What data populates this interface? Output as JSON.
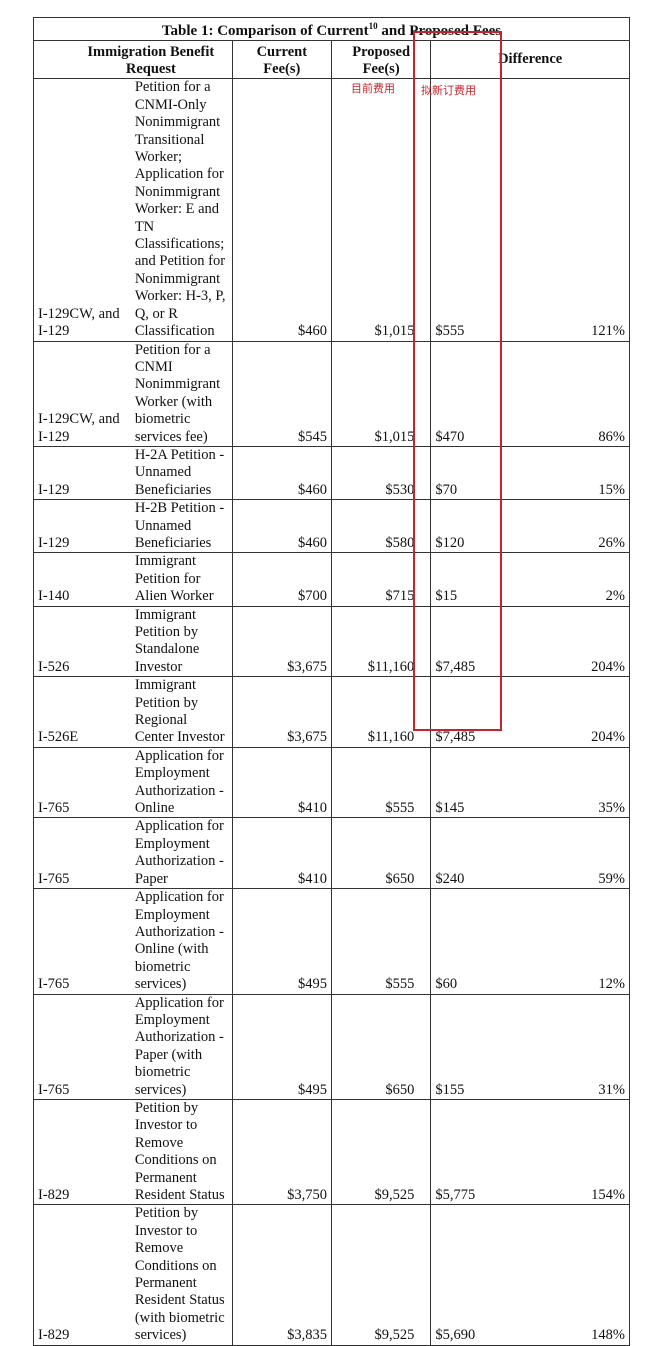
{
  "table": {
    "title": "Table 1: Comparison of Current",
    "title_sup": "10",
    "title_end": " and Proposed Fees",
    "headers": {
      "request": "Immigration Benefit Request",
      "current": "Current Fee(s)",
      "proposed": "Proposed Fee(s)",
      "difference": "Difference"
    },
    "annotations": {
      "current_cn": "目前费用",
      "proposed_cn": "拟新订费用",
      "highlight_color": "#c0262d"
    },
    "rows": [
      {
        "form": "I-129CW, and I-129",
        "desc": "Petition for a CNMI-Only Nonimmigrant Transitional Worker; Application for Nonimmigrant Worker: E and TN Classifications; and Petition for Nonimmigrant Worker: H-3, P, Q, or R Classification",
        "current": "$460",
        "proposed": "$1,015",
        "diff": "$555",
        "pct": "121%"
      },
      {
        "form": "I-129CW, and I-129",
        "desc": "Petition for a CNMI Nonimmigrant Worker (with biometric services fee)",
        "current": "$545",
        "proposed": "$1,015",
        "diff": "$470",
        "pct": "86%"
      },
      {
        "form": "I-129",
        "desc": "H-2A Petition - Unnamed Beneficiaries",
        "current": "$460",
        "proposed": "$530",
        "diff": "$70",
        "pct": "15%"
      },
      {
        "form": "I-129",
        "desc": "H-2B Petition - Unnamed Beneficiaries",
        "current": "$460",
        "proposed": "$580",
        "diff": "$120",
        "pct": "26%"
      },
      {
        "form": "I-140",
        "desc": "Immigrant Petition for Alien Worker",
        "current": "$700",
        "proposed": "$715",
        "diff": "$15",
        "pct": "2%"
      },
      {
        "form": "I-526",
        "desc": "Immigrant Petition by Standalone Investor",
        "current": "$3,675",
        "proposed": "$11,160",
        "diff": "$7,485",
        "pct": "204%"
      },
      {
        "form": "I-526E",
        "desc": "Immigrant Petition by Regional Center Investor",
        "current": "$3,675",
        "proposed": "$11,160",
        "diff": "$7,485",
        "pct": "204%"
      },
      {
        "form": "I-765",
        "desc": "Application for Employment Authorization - Online",
        "current": "$410",
        "proposed": "$555",
        "diff": "$145",
        "pct": "35%"
      },
      {
        "form": "I-765",
        "desc": "Application for Employment Authorization - Paper",
        "current": "$410",
        "proposed": "$650",
        "diff": "$240",
        "pct": "59%"
      },
      {
        "form": "I-765",
        "desc": "Application for Employment Authorization - Online (with biometric services)",
        "current": "$495",
        "proposed": "$555",
        "diff": "$60",
        "pct": "12%"
      },
      {
        "form": "I-765",
        "desc": "Application for Employment Authorization - Paper (with biometric services)",
        "current": "$495",
        "proposed": "$650",
        "diff": "$155",
        "pct": "31%"
      },
      {
        "form": "I-829",
        "desc": "Petition by Investor to Remove Conditions on Permanent Resident Status",
        "current": "$3,750",
        "proposed": "$9,525",
        "diff": "$5,775",
        "pct": "154%"
      },
      {
        "form": "I-829",
        "desc": "Petition by Investor to Remove Conditions on Permanent Resident Status (with biometric services)",
        "current": "$3,835",
        "proposed": "$9,525",
        "diff": "$5,690",
        "pct": "148%"
      }
    ]
  }
}
